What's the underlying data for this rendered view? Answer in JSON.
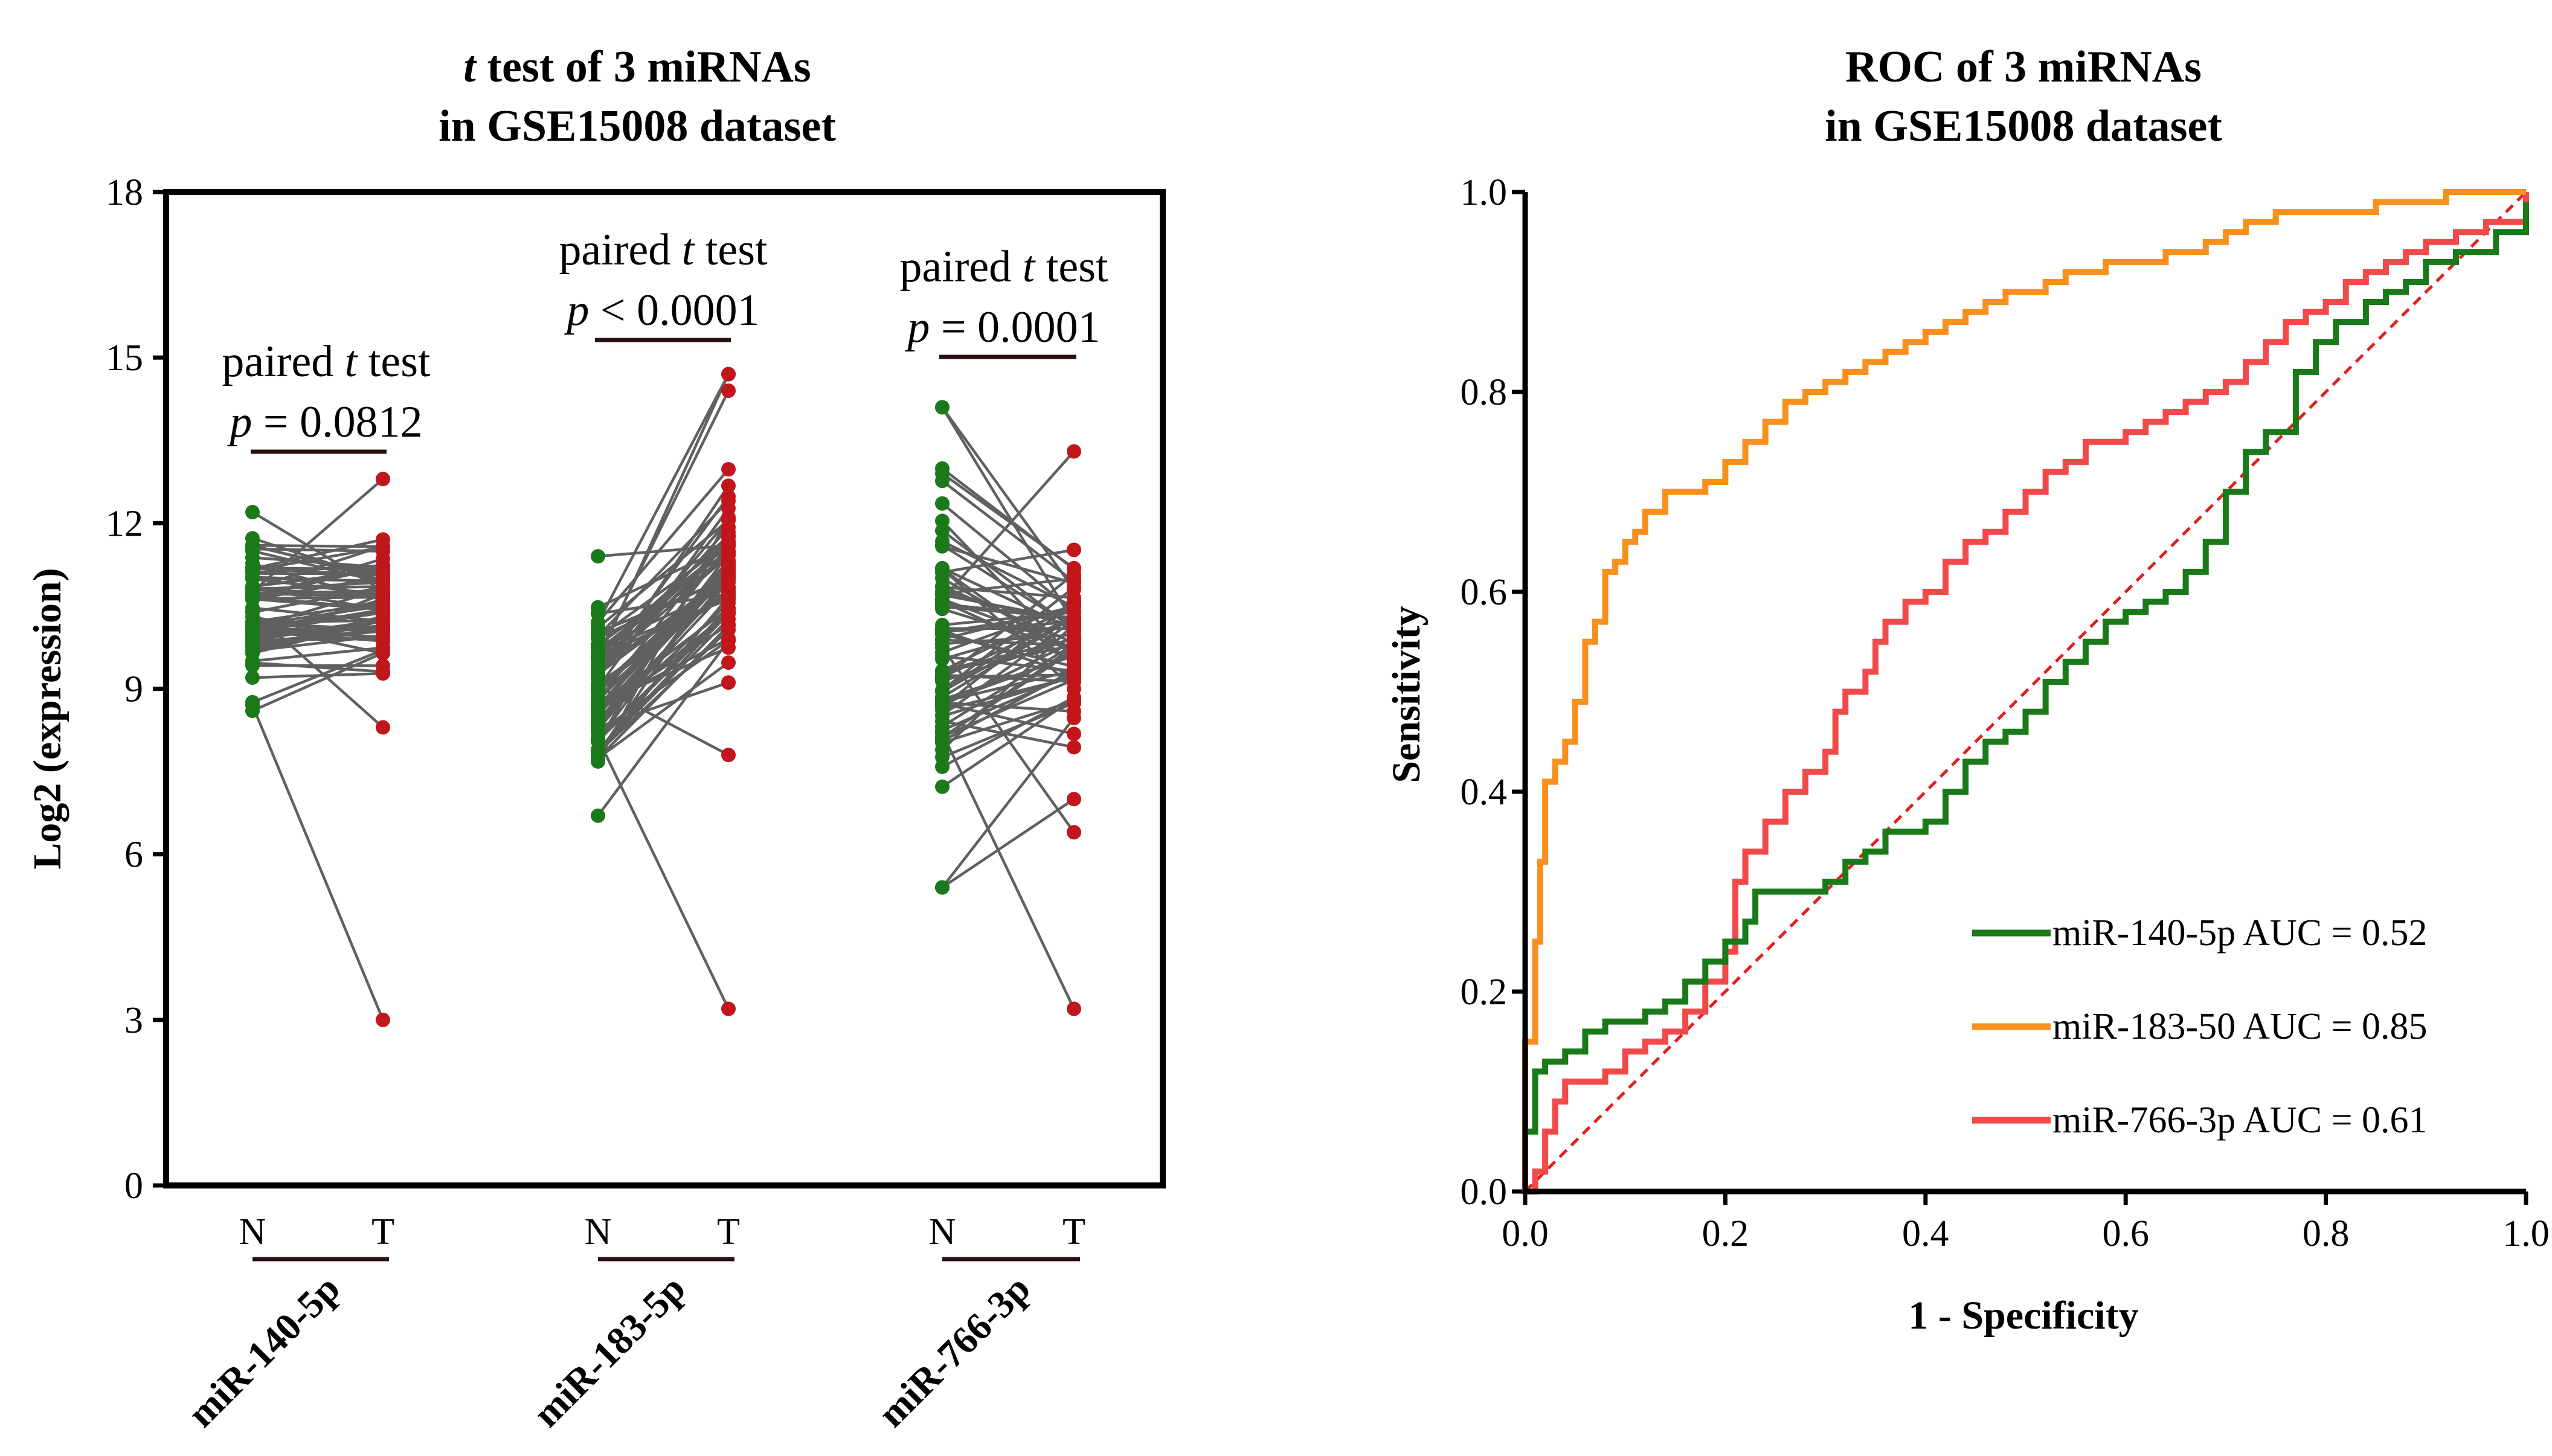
{
  "chart_data": [
    {
      "type": "scatter",
      "subtype": "paired-dot-plot",
      "title_italic": "t",
      "title_rest_line1": " test of 3 miRNAs",
      "title_line2": "in GSE15008 dataset",
      "ylabel": "Log2 (expression)",
      "ylim": [
        0,
        18
      ],
      "yticks": [
        0,
        3,
        6,
        9,
        12,
        15,
        18
      ],
      "group_labels": [
        "N",
        "T"
      ],
      "colors": {
        "N": "#1a7a1a",
        "T": "#c0161c",
        "line": "#606060"
      },
      "groups": [
        {
          "name": "miR-140-5p",
          "test_prefix": "paired ",
          "test_italic": "t",
          "test_suffix": " test",
          "p_italic": "p",
          "p_rest": " = 0.0812",
          "n_range": [
            8.6,
            12.2
          ],
          "t_range": [
            8.3,
            12.8
          ],
          "outliers": [
            {
              "n": 8.7,
              "t": 3.0
            }
          ],
          "seed": 11
        },
        {
          "name": "miR-183-5p",
          "test_prefix": "paired ",
          "test_italic": "t",
          "test_suffix": " test",
          "p_italic": "p",
          "p_rest": " < 0.0001",
          "n_range": [
            6.7,
            11.4
          ],
          "t_range": [
            7.8,
            14.7
          ],
          "outliers": [
            {
              "n": 8.1,
              "t": 3.2
            },
            {
              "n": 10.2,
              "t": 14.7
            },
            {
              "n": 9.6,
              "t": 14.4
            }
          ],
          "seed": 23
        },
        {
          "name": "miR-766-3p",
          "test_prefix": "paired ",
          "test_italic": "t",
          "test_suffix": " test",
          "p_italic": "p",
          "p_rest": " = 0.0001",
          "n_range": [
            5.4,
            14.1
          ],
          "t_range": [
            6.4,
            13.3
          ],
          "outliers": [
            {
              "n": 8.2,
              "t": 3.2
            },
            {
              "n": 14.1,
              "t": 10.8
            },
            {
              "n": 5.4,
              "t": 7.0
            }
          ],
          "seed": 37
        }
      ]
    },
    {
      "type": "line",
      "subtype": "roc",
      "title_line1": "ROC of 3 miRNAs",
      "title_line2": "in GSE15008  dataset",
      "xlabel": "1 - Specificity",
      "ylabel": "Sensitivity",
      "xlim": [
        0.0,
        1.0
      ],
      "ylim": [
        0.0,
        1.0
      ],
      "xticks": [
        "0.0",
        "0.2",
        "0.4",
        "0.6",
        "0.8",
        "1.0"
      ],
      "yticks": [
        "0.0",
        "0.2",
        "0.4",
        "0.6",
        "0.8",
        "1.0"
      ],
      "diagonal_color": "#e0201c",
      "series": [
        {
          "name": "miR-140-5p",
          "legend": "miR-140-5p AUC = 0.52",
          "auc": 0.52,
          "color": "#1a7a1a",
          "points": [
            [
              0,
              0
            ],
            [
              0,
              0.06
            ],
            [
              0.01,
              0.07
            ],
            [
              0.01,
              0.12
            ],
            [
              0.02,
              0.13
            ],
            [
              0.04,
              0.14
            ],
            [
              0.06,
              0.16
            ],
            [
              0.08,
              0.17
            ],
            [
              0.1,
              0.17
            ],
            [
              0.12,
              0.18
            ],
            [
              0.14,
              0.19
            ],
            [
              0.16,
              0.21
            ],
            [
              0.18,
              0.23
            ],
            [
              0.2,
              0.25
            ],
            [
              0.22,
              0.27
            ],
            [
              0.23,
              0.3
            ],
            [
              0.26,
              0.3
            ],
            [
              0.3,
              0.31
            ],
            [
              0.32,
              0.33
            ],
            [
              0.34,
              0.34
            ],
            [
              0.36,
              0.36
            ],
            [
              0.38,
              0.36
            ],
            [
              0.4,
              0.37
            ],
            [
              0.42,
              0.4
            ],
            [
              0.44,
              0.43
            ],
            [
              0.46,
              0.45
            ],
            [
              0.48,
              0.46
            ],
            [
              0.5,
              0.48
            ],
            [
              0.52,
              0.51
            ],
            [
              0.54,
              0.53
            ],
            [
              0.56,
              0.55
            ],
            [
              0.58,
              0.57
            ],
            [
              0.6,
              0.58
            ],
            [
              0.62,
              0.59
            ],
            [
              0.64,
              0.6
            ],
            [
              0.66,
              0.62
            ],
            [
              0.68,
              0.65
            ],
            [
              0.7,
              0.7
            ],
            [
              0.72,
              0.74
            ],
            [
              0.74,
              0.76
            ],
            [
              0.76,
              0.76
            ],
            [
              0.77,
              0.82
            ],
            [
              0.79,
              0.85
            ],
            [
              0.81,
              0.87
            ],
            [
              0.84,
              0.89
            ],
            [
              0.86,
              0.9
            ],
            [
              0.88,
              0.91
            ],
            [
              0.9,
              0.93
            ],
            [
              0.93,
              0.94
            ],
            [
              0.95,
              0.94
            ],
            [
              0.97,
              0.96
            ],
            [
              1.0,
              0.99
            ]
          ]
        },
        {
          "name": "miR-183-50",
          "legend": "miR-183-50 AUC = 0.85",
          "auc": 0.85,
          "color": "#f7901e",
          "points": [
            [
              0,
              0
            ],
            [
              0,
              0.15
            ],
            [
              0.01,
              0.25
            ],
            [
              0.015,
              0.33
            ],
            [
              0.02,
              0.41
            ],
            [
              0.03,
              0.43
            ],
            [
              0.04,
              0.45
            ],
            [
              0.05,
              0.49
            ],
            [
              0.06,
              0.55
            ],
            [
              0.07,
              0.57
            ],
            [
              0.08,
              0.62
            ],
            [
              0.09,
              0.63
            ],
            [
              0.1,
              0.65
            ],
            [
              0.11,
              0.66
            ],
            [
              0.12,
              0.68
            ],
            [
              0.14,
              0.7
            ],
            [
              0.16,
              0.7
            ],
            [
              0.18,
              0.71
            ],
            [
              0.2,
              0.73
            ],
            [
              0.22,
              0.75
            ],
            [
              0.24,
              0.77
            ],
            [
              0.26,
              0.79
            ],
            [
              0.28,
              0.8
            ],
            [
              0.3,
              0.81
            ],
            [
              0.32,
              0.82
            ],
            [
              0.34,
              0.83
            ],
            [
              0.36,
              0.84
            ],
            [
              0.38,
              0.85
            ],
            [
              0.4,
              0.86
            ],
            [
              0.42,
              0.87
            ],
            [
              0.44,
              0.88
            ],
            [
              0.46,
              0.89
            ],
            [
              0.48,
              0.9
            ],
            [
              0.5,
              0.9
            ],
            [
              0.52,
              0.91
            ],
            [
              0.54,
              0.92
            ],
            [
              0.56,
              0.92
            ],
            [
              0.58,
              0.93
            ],
            [
              0.6,
              0.93
            ],
            [
              0.62,
              0.93
            ],
            [
              0.64,
              0.94
            ],
            [
              0.66,
              0.94
            ],
            [
              0.68,
              0.95
            ],
            [
              0.7,
              0.96
            ],
            [
              0.72,
              0.97
            ],
            [
              0.75,
              0.98
            ],
            [
              0.8,
              0.98
            ],
            [
              0.85,
              0.99
            ],
            [
              0.9,
              0.99
            ],
            [
              0.92,
              1.0
            ],
            [
              1.0,
              1.0
            ]
          ]
        },
        {
          "name": "miR-766-3p",
          "legend": "miR-766-3p AUC = 0.61",
          "auc": 0.61,
          "color": "#f04a4a",
          "points": [
            [
              0,
              0
            ],
            [
              0.01,
              0.02
            ],
            [
              0.02,
              0.06
            ],
            [
              0.03,
              0.09
            ],
            [
              0.04,
              0.11
            ],
            [
              0.06,
              0.11
            ],
            [
              0.08,
              0.12
            ],
            [
              0.1,
              0.14
            ],
            [
              0.12,
              0.15
            ],
            [
              0.14,
              0.16
            ],
            [
              0.16,
              0.18
            ],
            [
              0.18,
              0.21
            ],
            [
              0.2,
              0.24
            ],
            [
              0.21,
              0.31
            ],
            [
              0.22,
              0.34
            ],
            [
              0.24,
              0.37
            ],
            [
              0.26,
              0.4
            ],
            [
              0.28,
              0.42
            ],
            [
              0.3,
              0.44
            ],
            [
              0.31,
              0.48
            ],
            [
              0.32,
              0.5
            ],
            [
              0.34,
              0.52
            ],
            [
              0.35,
              0.55
            ],
            [
              0.36,
              0.57
            ],
            [
              0.38,
              0.59
            ],
            [
              0.4,
              0.6
            ],
            [
              0.42,
              0.63
            ],
            [
              0.44,
              0.65
            ],
            [
              0.46,
              0.66
            ],
            [
              0.48,
              0.68
            ],
            [
              0.5,
              0.7
            ],
            [
              0.52,
              0.72
            ],
            [
              0.54,
              0.73
            ],
            [
              0.56,
              0.75
            ],
            [
              0.58,
              0.75
            ],
            [
              0.6,
              0.76
            ],
            [
              0.62,
              0.77
            ],
            [
              0.64,
              0.78
            ],
            [
              0.66,
              0.79
            ],
            [
              0.68,
              0.8
            ],
            [
              0.7,
              0.81
            ],
            [
              0.72,
              0.83
            ],
            [
              0.74,
              0.85
            ],
            [
              0.76,
              0.87
            ],
            [
              0.78,
              0.88
            ],
            [
              0.8,
              0.89
            ],
            [
              0.82,
              0.91
            ],
            [
              0.84,
              0.92
            ],
            [
              0.86,
              0.93
            ],
            [
              0.88,
              0.94
            ],
            [
              0.9,
              0.95
            ],
            [
              0.93,
              0.96
            ],
            [
              0.96,
              0.97
            ],
            [
              1.0,
              1.0
            ]
          ]
        }
      ]
    }
  ]
}
